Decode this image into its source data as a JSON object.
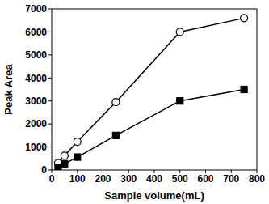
{
  "chart_data": {
    "type": "line",
    "x_label": "Sample volume(mL)",
    "y_label": "Peak Area",
    "x": [
      25,
      50,
      100,
      250,
      500,
      750
    ],
    "xlim": [
      0,
      800
    ],
    "xticks": [
      0,
      100,
      200,
      300,
      400,
      500,
      600,
      700,
      800
    ],
    "ylim": [
      0,
      7000
    ],
    "yticks": [
      0,
      1000,
      2000,
      3000,
      4000,
      5000,
      6000,
      7000
    ],
    "grid": false,
    "series": [
      {
        "color": "#000000",
        "marker": "open_circle",
        "values": [
          300,
          620,
          1230,
          2950,
          6000,
          6600
        ]
      },
      {
        "color": "#000000",
        "marker": "square",
        "values": [
          120,
          270,
          560,
          1500,
          3000,
          3500
        ]
      }
    ]
  }
}
